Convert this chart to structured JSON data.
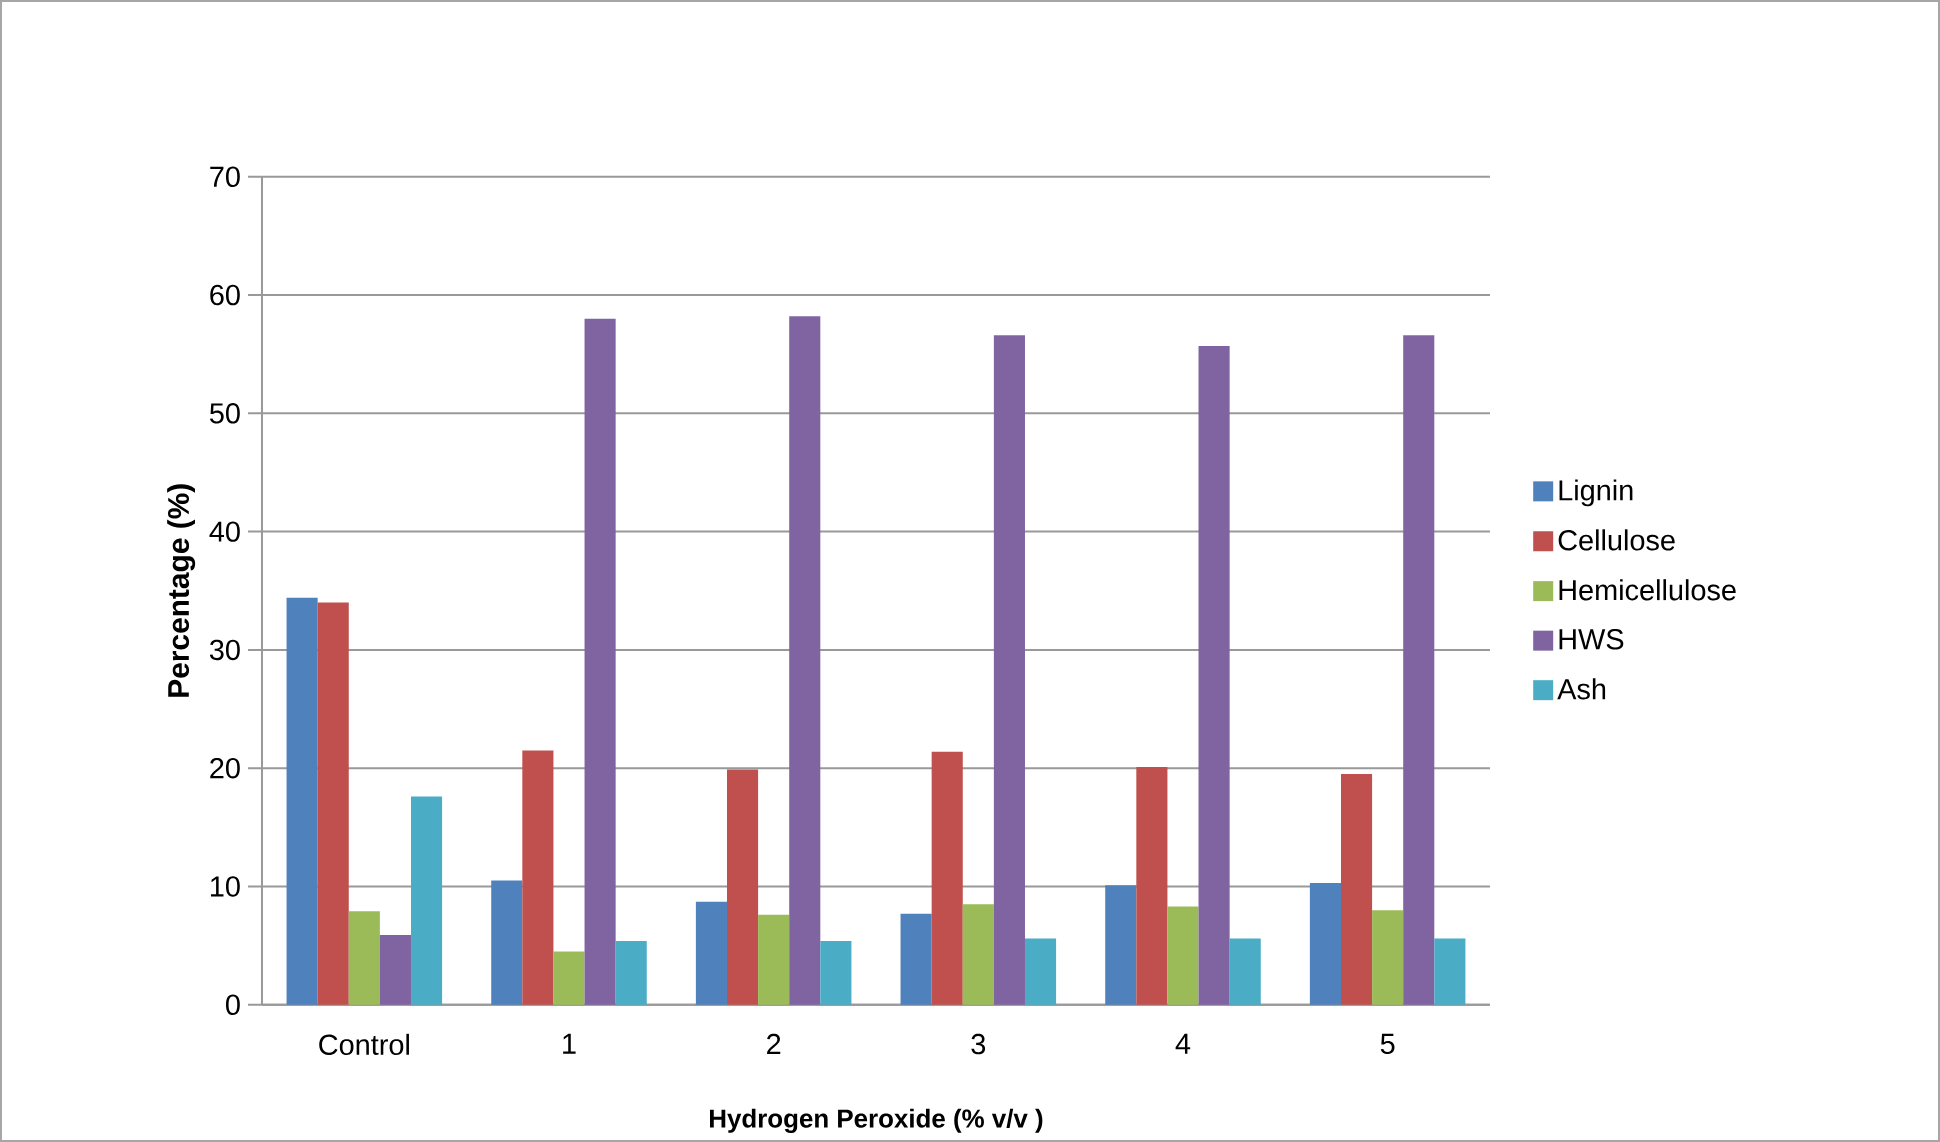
{
  "chart_data": {
    "type": "bar",
    "xlabel": "Hydrogen Peroxide (% v/v )",
    "ylabel": "Percentage (%)",
    "categories": [
      "Control",
      "1",
      "2",
      "3",
      "4",
      "5"
    ],
    "series": [
      {
        "name": "Lignin",
        "color": "#4f81bd",
        "values": [
          34.4,
          10.5,
          8.7,
          7.7,
          10.1,
          10.3
        ]
      },
      {
        "name": "Cellulose",
        "color": "#c0504d",
        "values": [
          34.0,
          21.5,
          19.9,
          21.4,
          20.1,
          19.5
        ]
      },
      {
        "name": "Hemicellulose",
        "color": "#9bbb59",
        "values": [
          7.9,
          4.5,
          7.6,
          8.5,
          8.3,
          8.0
        ]
      },
      {
        "name": "HWS",
        "color": "#8064a2",
        "values": [
          5.9,
          58.0,
          58.2,
          56.6,
          55.7,
          56.6
        ]
      },
      {
        "name": "Ash",
        "color": "#4bacc6",
        "values": [
          17.6,
          5.4,
          5.4,
          5.6,
          5.6,
          5.6
        ]
      }
    ],
    "ylim": [
      0,
      70
    ],
    "yticks": [
      0,
      10,
      20,
      30,
      40,
      50,
      60,
      70
    ],
    "grid": "y",
    "legend": "right"
  }
}
